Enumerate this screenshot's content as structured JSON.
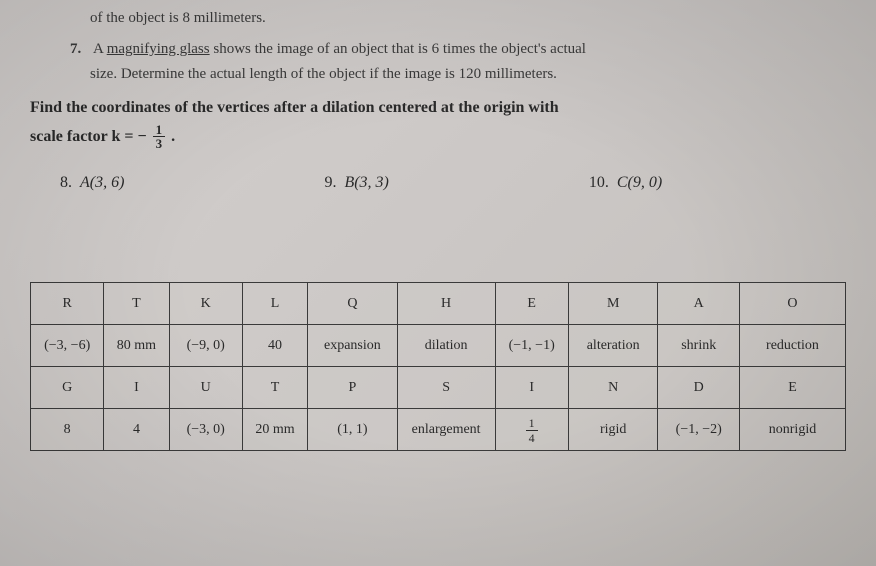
{
  "partial_line": "of the object is 8 millimeters.",
  "problem7": {
    "number": "7.",
    "text_part1": "A ",
    "underlined": "magnifying glass",
    "text_part2": " shows the image of an object that is 6 times the object's actual",
    "text_line2": "size. Determine the actual length of the object if the image is 120 millimeters."
  },
  "instruction_line1": "Find the coordinates of the vertices after a dilation centered at the origin with",
  "instruction_line2_prefix": "scale factor  k = ",
  "scale_neg": "−",
  "scale_num": "1",
  "scale_den": "3",
  "scale_suffix": ".",
  "problems": [
    {
      "num": "8.",
      "letter": "A",
      "coord": "(3, 6)"
    },
    {
      "num": "9.",
      "letter": "B",
      "coord": "(3, 3)"
    },
    {
      "num": "10.",
      "letter": "C",
      "coord": "(9, 0)"
    }
  ],
  "table": {
    "row1": [
      "R",
      "T",
      "K",
      "L",
      "Q",
      "H",
      "E",
      "M",
      "A",
      "O"
    ],
    "row2": [
      "(−3, −6)",
      "80 mm",
      "(−9, 0)",
      "40",
      "expansion",
      "dilation",
      "(−1, −1)",
      "alteration",
      "shrink",
      "reduction"
    ],
    "row3": [
      "G",
      "I",
      "U",
      "T",
      "P",
      "S",
      "I",
      "N",
      "D",
      "E"
    ],
    "row4": {
      "cells": [
        "8",
        "4",
        "(−3, 0)",
        "20 mm",
        "(1, 1)",
        "enlargement",
        "",
        "rigid",
        "(−1, −2)",
        "nonrigid"
      ],
      "fraction_cell_index": 6,
      "fraction": {
        "n": "1",
        "d": "4"
      }
    },
    "col_widths": [
      "9%",
      "8%",
      "9%",
      "8%",
      "11%",
      "12%",
      "9%",
      "11%",
      "10%",
      "13%"
    ]
  }
}
